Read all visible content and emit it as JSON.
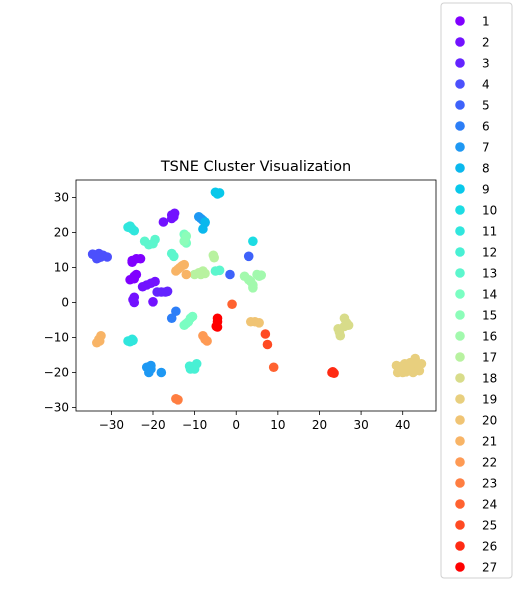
{
  "chart_data": {
    "type": "scatter",
    "title": "TSNE Cluster Visualization",
    "xlabel": "",
    "ylabel": "",
    "xlim": [
      -38.5,
      48
    ],
    "ylim": [
      -31,
      35
    ],
    "x_ticks": [
      -30,
      -20,
      -10,
      0,
      10,
      20,
      30,
      40
    ],
    "y_ticks": [
      -30,
      -20,
      -10,
      0,
      10,
      20,
      30
    ],
    "x_tick_labels": [
      "−30",
      "−20",
      "−10",
      "0",
      "10",
      "20",
      "30",
      "40"
    ],
    "y_tick_labels": [
      "−30",
      "−20",
      "−10",
      "0",
      "10",
      "20",
      "30"
    ],
    "grid": false,
    "legend_position": "right-outside",
    "series": [
      {
        "name": "1",
        "color": "#8000ff",
        "points": [
          [
            -25,
            12
          ],
          [
            -24,
            12.5
          ],
          [
            -25.5,
            6.5
          ],
          [
            -24.5,
            7.5
          ],
          [
            -24,
            8
          ],
          [
            -23,
            12.5
          ],
          [
            -25,
            11.5
          ],
          [
            -24.5,
            6.8
          ]
        ]
      },
      {
        "name": "2",
        "color": "#7212ff",
        "points": [
          [
            -15.5,
            25
          ],
          [
            -15,
            24.5
          ],
          [
            -17.5,
            23
          ],
          [
            -15.5,
            24
          ],
          [
            -14.8,
            25.5
          ],
          [
            -21.5,
            5
          ],
          [
            -20.5,
            5.5
          ],
          [
            -19.5,
            6
          ],
          [
            -22.5,
            4.5
          ],
          [
            -24.5,
            1.5
          ],
          [
            -24.5,
            0
          ],
          [
            -20,
            0.2
          ],
          [
            -24.8,
            0.8
          ]
        ]
      },
      {
        "name": "3",
        "color": "#6424ff",
        "points": [
          [
            -17,
            3
          ],
          [
            -18,
            3
          ],
          [
            -19,
            3
          ],
          [
            -16.5,
            3.2
          ]
        ]
      },
      {
        "name": "4",
        "color": "#4c50fc",
        "points": [
          [
            -34,
            13.5
          ],
          [
            -33,
            14
          ],
          [
            -32.5,
            13
          ],
          [
            -31,
            13
          ],
          [
            -33.5,
            12.5
          ],
          [
            -32,
            13.5
          ],
          [
            -34.5,
            13.8
          ],
          [
            -33,
            12.8
          ]
        ]
      },
      {
        "name": "5",
        "color": "#3e62fa",
        "points": [
          [
            3,
            13.2
          ],
          [
            -1.5,
            8
          ]
        ]
      },
      {
        "name": "6",
        "color": "#2c7ef7",
        "points": [
          [
            -15.5,
            -4.5
          ],
          [
            -14.5,
            -2.5
          ]
        ]
      },
      {
        "name": "7",
        "color": "#1e98f3",
        "points": [
          [
            -9,
            24.5
          ],
          [
            -8,
            23.5
          ],
          [
            -7.5,
            22.8
          ],
          [
            -8.5,
            24
          ],
          [
            -21.5,
            -18.5
          ],
          [
            -20.5,
            -18
          ],
          [
            -21,
            -20
          ],
          [
            -20.5,
            -19
          ],
          [
            -18,
            -20
          ]
        ]
      },
      {
        "name": "8",
        "color": "#0ab8ed",
        "points": [
          [
            -8,
            21
          ],
          [
            -7.5,
            23
          ]
        ]
      },
      {
        "name": "9",
        "color": "#08c8ea",
        "points": [
          [
            -5,
            31.5
          ],
          [
            -4,
            31.3
          ],
          [
            -4.5,
            31
          ]
        ]
      },
      {
        "name": "10",
        "color": "#1cdce3",
        "points": [
          [
            4,
            17.5
          ]
        ]
      },
      {
        "name": "11",
        "color": "#30e6dd",
        "points": [
          [
            -26,
            21.5
          ],
          [
            -25,
            21
          ],
          [
            -24.5,
            20.5
          ],
          [
            -25.5,
            21.8
          ],
          [
            -26,
            -11
          ],
          [
            -25,
            -10.5
          ],
          [
            -25.5,
            -11.2
          ],
          [
            -24.8,
            -10.8
          ]
        ]
      },
      {
        "name": "12",
        "color": "#48f0d4",
        "points": [
          [
            -11,
            -19
          ],
          [
            -10.5,
            -18.5
          ],
          [
            -9.5,
            -17.5
          ],
          [
            -10,
            -19
          ],
          [
            -11.2,
            -18.2
          ]
        ]
      },
      {
        "name": "13",
        "color": "#5cf6cd",
        "points": [
          [
            -22,
            17.5
          ],
          [
            -21,
            16.5
          ],
          [
            -19.5,
            18
          ],
          [
            -20,
            16.8
          ],
          [
            -15.5,
            14
          ],
          [
            -15,
            13.2
          ],
          [
            -5,
            9
          ],
          [
            -4,
            9.2
          ]
        ]
      },
      {
        "name": "14",
        "color": "#7afec2",
        "points": [
          [
            -12.5,
            19.5
          ],
          [
            -12.2,
            18.5
          ],
          [
            -12,
            17
          ],
          [
            -12.5,
            -6.5
          ],
          [
            -11.5,
            -5.5
          ],
          [
            -11,
            -4.5
          ],
          [
            -10.5,
            -4
          ],
          [
            -12,
            -6
          ]
        ]
      },
      {
        "name": "15",
        "color": "#8cfdb9",
        "points": [
          [
            -12,
            19
          ],
          [
            -12.5,
            17.5
          ]
        ]
      },
      {
        "name": "16",
        "color": "#a2f9ad",
        "points": [
          [
            2,
            7.5
          ],
          [
            3,
            6.5
          ],
          [
            4,
            5
          ],
          [
            5,
            8
          ],
          [
            6,
            7.8
          ],
          [
            3.5,
            6
          ],
          [
            4,
            4.2
          ],
          [
            5.5,
            7.5
          ]
        ]
      },
      {
        "name": "17",
        "color": "#b8f2a0",
        "points": [
          [
            -10,
            8
          ],
          [
            -9,
            8.5
          ],
          [
            -8,
            9
          ],
          [
            -7.5,
            8.3
          ],
          [
            -5.5,
            13.5
          ],
          [
            -5.3,
            12.8
          ],
          [
            -8.5,
            8
          ]
        ]
      },
      {
        "name": "18",
        "color": "#d8dc8a",
        "points": [
          [
            26,
            -4.5
          ],
          [
            27,
            -6.5
          ],
          [
            26,
            -6.8
          ],
          [
            26.5,
            -5.8
          ],
          [
            24.5,
            -7.5
          ],
          [
            25,
            -9.5
          ],
          [
            24.8,
            -8.5
          ]
        ]
      },
      {
        "name": "19",
        "color": "#e8cf7e",
        "points": [
          [
            38.5,
            -18
          ],
          [
            39.5,
            -19
          ],
          [
            40,
            -20
          ],
          [
            40.5,
            -17.5
          ],
          [
            41,
            -18.5
          ],
          [
            41.5,
            -19.5
          ],
          [
            42,
            -18
          ],
          [
            42.5,
            -20
          ],
          [
            43,
            -16
          ],
          [
            43.5,
            -18.5
          ],
          [
            44,
            -19.5
          ],
          [
            44.5,
            -17.5
          ],
          [
            38.8,
            -20
          ],
          [
            39.8,
            -18.2
          ],
          [
            40.8,
            -19.8
          ],
          [
            41.8,
            -17.2
          ],
          [
            42.8,
            -19.2
          ],
          [
            43.8,
            -17.8
          ]
        ]
      },
      {
        "name": "20",
        "color": "#f0c474",
        "points": [
          [
            3.5,
            -5.5
          ],
          [
            4.5,
            -5.5
          ],
          [
            5.5,
            -5.8
          ]
        ]
      },
      {
        "name": "21",
        "color": "#f8b466",
        "points": [
          [
            -14.5,
            9
          ],
          [
            -13.5,
            10
          ],
          [
            -13,
            10.5
          ],
          [
            -12.5,
            10.8
          ],
          [
            -12,
            8
          ],
          [
            -14,
            9.5
          ],
          [
            -33,
            -10.5
          ],
          [
            -32.5,
            -9.5
          ],
          [
            -33.5,
            -11.5
          ],
          [
            -32.8,
            -11
          ]
        ]
      },
      {
        "name": "22",
        "color": "#fe9a54",
        "points": [
          [
            -8,
            -9.5
          ],
          [
            -7.5,
            -10.5
          ],
          [
            -7,
            -11
          ]
        ]
      },
      {
        "name": "23",
        "color": "#ff7e41",
        "points": [
          [
            -14.5,
            -27.5
          ],
          [
            -14,
            -27.8
          ]
        ]
      },
      {
        "name": "24",
        "color": "#ff6230",
        "points": [
          [
            -1,
            -0.5
          ],
          [
            9,
            -18.5
          ]
        ]
      },
      {
        "name": "25",
        "color": "#ff4a22",
        "points": [
          [
            7,
            -9
          ],
          [
            7.5,
            -12
          ]
        ]
      },
      {
        "name": "26",
        "color": "#ff2a13",
        "points": [
          [
            23,
            -20
          ],
          [
            23.5,
            -20.2
          ],
          [
            23.2,
            -19.8
          ]
        ]
      },
      {
        "name": "27",
        "color": "#ff0000",
        "points": [
          [
            -4.5,
            -4.5
          ],
          [
            -4.5,
            -5.5
          ],
          [
            -4.5,
            -7
          ],
          [
            -4.8,
            -6.8
          ]
        ]
      }
    ]
  }
}
